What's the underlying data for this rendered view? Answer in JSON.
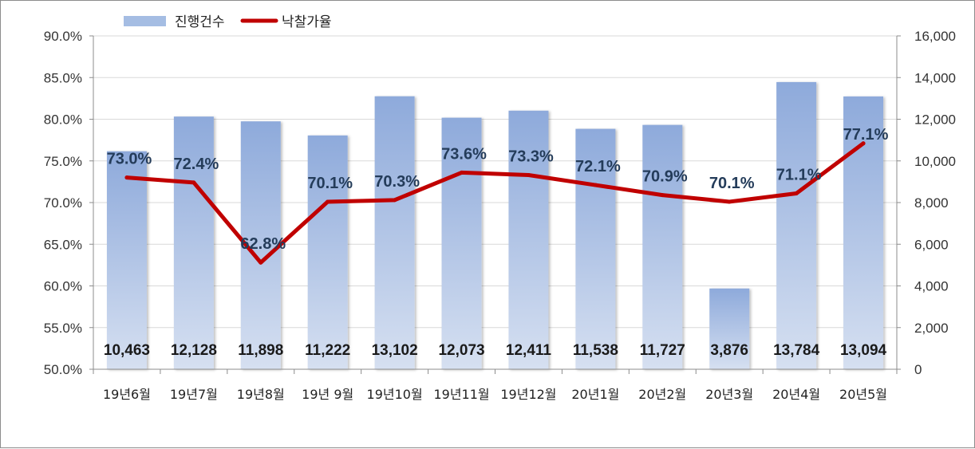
{
  "chart_data": {
    "type": "bar+line",
    "categories": [
      "19년6월",
      "19년7월",
      "19년8월",
      "19년 9월",
      "19년10월",
      "19년11월",
      "19년12월",
      "20년1월",
      "20년2월",
      "20년3월",
      "20년4월",
      "20년5월"
    ],
    "series": [
      {
        "name": "진행건수",
        "type": "bar",
        "axis": "right",
        "color": "#8eaadb",
        "values": [
          10463,
          12128,
          11898,
          11222,
          13102,
          12073,
          12411,
          11538,
          11727,
          3876,
          13784,
          13094
        ],
        "labels": [
          "10,463",
          "12,128",
          "11,898",
          "11,222",
          "13,102",
          "12,073",
          "12,411",
          "11,538",
          "11,727",
          "3,876",
          "13,784",
          "13,094"
        ]
      },
      {
        "name": "낙찰가율",
        "type": "line",
        "axis": "left",
        "color": "#c00000",
        "values": [
          73.0,
          72.4,
          62.8,
          70.1,
          70.3,
          73.6,
          73.3,
          72.1,
          70.9,
          70.1,
          71.1,
          77.1
        ],
        "labels": [
          "73.0%",
          "72.4%",
          "62.8%",
          "70.1%",
          "70.3%",
          "73.6%",
          "73.3%",
          "72.1%",
          "70.9%",
          "70.1%",
          "71.1%",
          "77.1%"
        ]
      }
    ],
    "y_left": {
      "min": 50,
      "max": 90,
      "ticks": [
        50,
        55,
        60,
        65,
        70,
        75,
        80,
        85,
        90
      ],
      "tick_labels": [
        "50.0%",
        "55.0%",
        "60.0%",
        "65.0%",
        "70.0%",
        "75.0%",
        "80.0%",
        "85.0%",
        "90.0%"
      ]
    },
    "y_right": {
      "min": 0,
      "max": 16000,
      "ticks": [
        0,
        2000,
        4000,
        6000,
        8000,
        10000,
        12000,
        14000,
        16000
      ],
      "tick_labels": [
        "0",
        "2,000",
        "4,000",
        "6,000",
        "8,000",
        "10,000",
        "12,000",
        "14,000",
        "16,000"
      ]
    },
    "grid": true,
    "legend": {
      "position": "top-left",
      "entries": [
        "진행건수",
        "낙찰가율"
      ]
    }
  }
}
